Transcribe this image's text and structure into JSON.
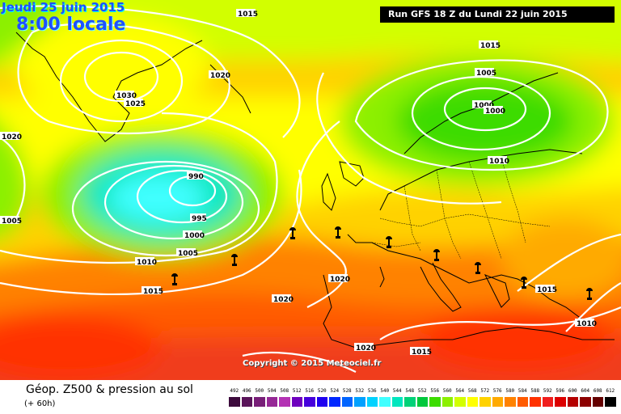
{
  "header": {
    "date_label": "Jeudi 25 juin 2015",
    "time_label": "8:00 locale",
    "run_label": "Run GFS 18 Z du Lundi 22 juin 2015"
  },
  "map": {
    "copyright": "Copyright © 2015 Meteociel.fr",
    "pressure_labels": [
      "1015",
      "1030",
      "1025",
      "1020",
      "1020",
      "990",
      "995",
      "1000",
      "1005",
      "1010",
      "1015",
      "1005",
      "1015",
      "1005",
      "1000",
      "1000",
      "1010",
      "1020",
      "1020",
      "1020",
      "1015",
      "1015",
      "1010"
    ],
    "weather_icon": "umbrella-rain-icon"
  },
  "footer": {
    "title": "Géop. Z500 & pression au sol",
    "subtitle": "(+ 60h)"
  },
  "legend": {
    "values": [
      "492",
      "496",
      "500",
      "504",
      "508",
      "512",
      "516",
      "520",
      "524",
      "528",
      "532",
      "536",
      "540",
      "544",
      "548",
      "552",
      "556",
      "560",
      "564",
      "568",
      "572",
      "576",
      "580",
      "584",
      "588",
      "592",
      "596",
      "600",
      "604",
      "608",
      "612"
    ],
    "colors": [
      "#3c0a3c",
      "#5a145a",
      "#781e78",
      "#962896",
      "#b432b4",
      "#6e00be",
      "#4600dc",
      "#1e00f0",
      "#0028ff",
      "#0064ff",
      "#00a0ff",
      "#00d2ff",
      "#40ffff",
      "#00e6be",
      "#00d278",
      "#00c83c",
      "#3cdc00",
      "#8cf000",
      "#d2ff00",
      "#ffff00",
      "#ffd200",
      "#ffaa00",
      "#ff8200",
      "#ff5a00",
      "#ff3200",
      "#f01e1e",
      "#dc0000",
      "#b40000",
      "#8c0000",
      "#640000",
      "#000000"
    ]
  }
}
